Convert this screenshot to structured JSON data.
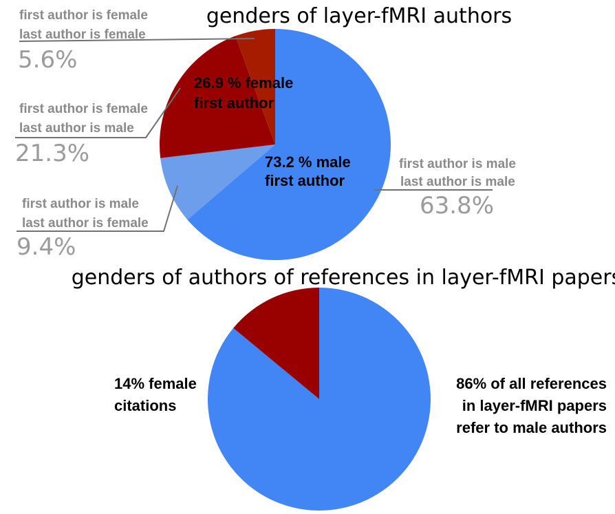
{
  "chart_data": [
    {
      "type": "pie",
      "title": "genders of layer-fMRI authors",
      "slices": [
        {
          "label_line1": "first author is male",
          "label_line2": "last author is male",
          "value_text": "63.8%",
          "value": 63.8,
          "color": "#4285f4"
        },
        {
          "label_line1": "first author is male",
          "label_line2": "last author is female",
          "value_text": "9.4%",
          "value": 9.4,
          "color": "#6d9eeb"
        },
        {
          "label_line1": "first author is female",
          "label_line2": "last author is male",
          "value_text": "21.3%",
          "value": 21.3,
          "color": "#990000"
        },
        {
          "label_line1": "first author is female",
          "label_line2": "last author is female",
          "value_text": "5.6%",
          "value": 5.6,
          "color": "#a61c00"
        }
      ],
      "annotations": {
        "female_line1": "26.9 % female",
        "female_line2": "first author",
        "male_line1": "73.2 % male",
        "male_line2": "first author"
      }
    },
    {
      "type": "pie",
      "title": "genders of authors of references in layer-fMRI papers",
      "slices": [
        {
          "value": 86,
          "color": "#4285f4"
        },
        {
          "value": 14,
          "color": "#990000"
        }
      ],
      "annotations": {
        "female_line1": "14% female",
        "female_line2": "citations",
        "male_line1": "86% of all references",
        "male_line2": "in layer-fMRI papers",
        "male_line3": "refer to male authors"
      }
    }
  ]
}
